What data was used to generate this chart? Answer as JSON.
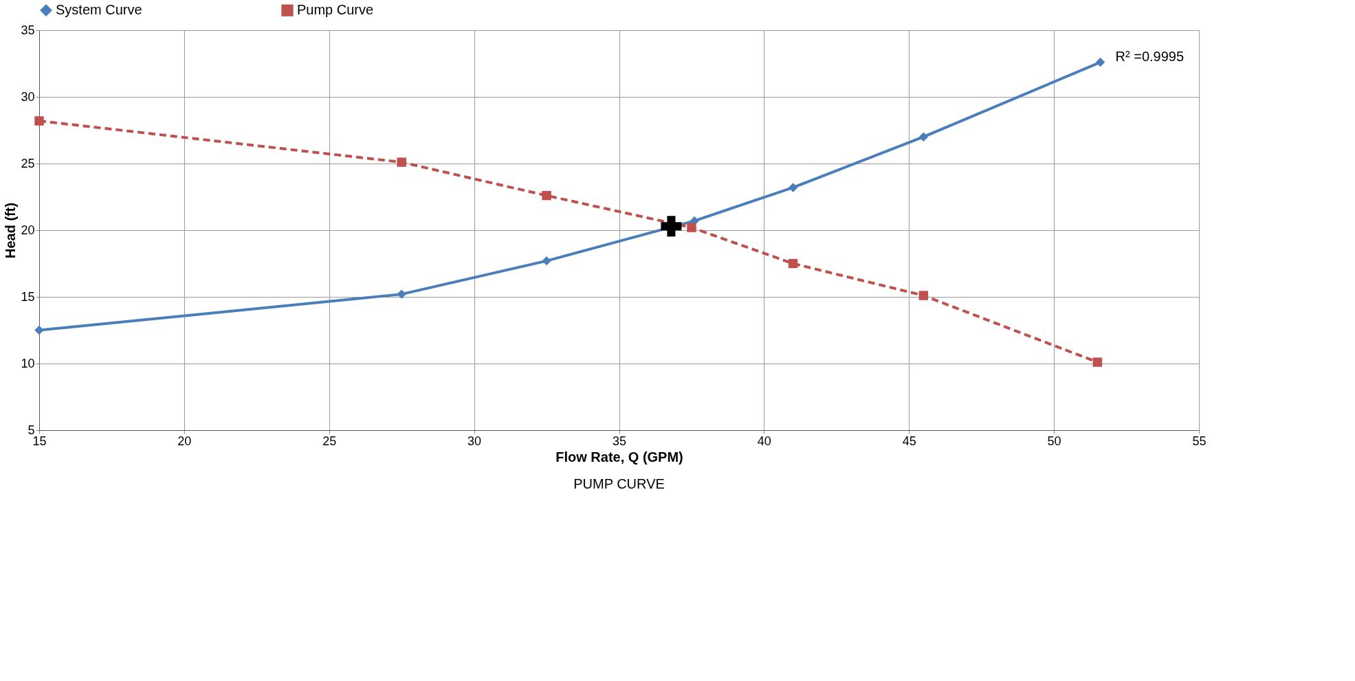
{
  "chart_data": {
    "type": "line",
    "xlabel": "Flow Rate, Q (GPM)",
    "ylabel": "Head (ft)",
    "xlim": [
      15,
      55
    ],
    "xticks": [
      15,
      20,
      25,
      30,
      35,
      40,
      45,
      50,
      55
    ],
    "ylim": [
      5,
      35
    ],
    "yticks": [
      5,
      10,
      15,
      20,
      25,
      30,
      35
    ],
    "grid": true,
    "legend": "top",
    "series": [
      {
        "name": "System Curve",
        "color": "#4a7ebb",
        "marker": "diamond",
        "line_style": "solid",
        "x": [
          15,
          27.5,
          32.5,
          37.6,
          41,
          45.5,
          51.6
        ],
        "values": [
          12.5,
          15.2,
          17.7,
          20.7,
          23.2,
          27,
          32.6
        ]
      },
      {
        "name": "Pump Curve",
        "color": "#c0504d",
        "marker": "square",
        "line_style": "dashed",
        "x": [
          15,
          27.5,
          32.5,
          37.5,
          41,
          45.5,
          51.5
        ],
        "values": [
          28.2,
          25.1,
          22.6,
          20.2,
          17.5,
          15.1,
          10.1
        ]
      },
      {
        "type": "scatter",
        "color": "#000000",
        "marker": "cross",
        "x": [
          36.8
        ],
        "values": [
          20.3
        ]
      }
    ],
    "annotations": [
      {
        "text": "R² =0.9995",
        "x": 51.6,
        "y": 32.6
      },
      "PUMP  CURVE"
    ]
  }
}
